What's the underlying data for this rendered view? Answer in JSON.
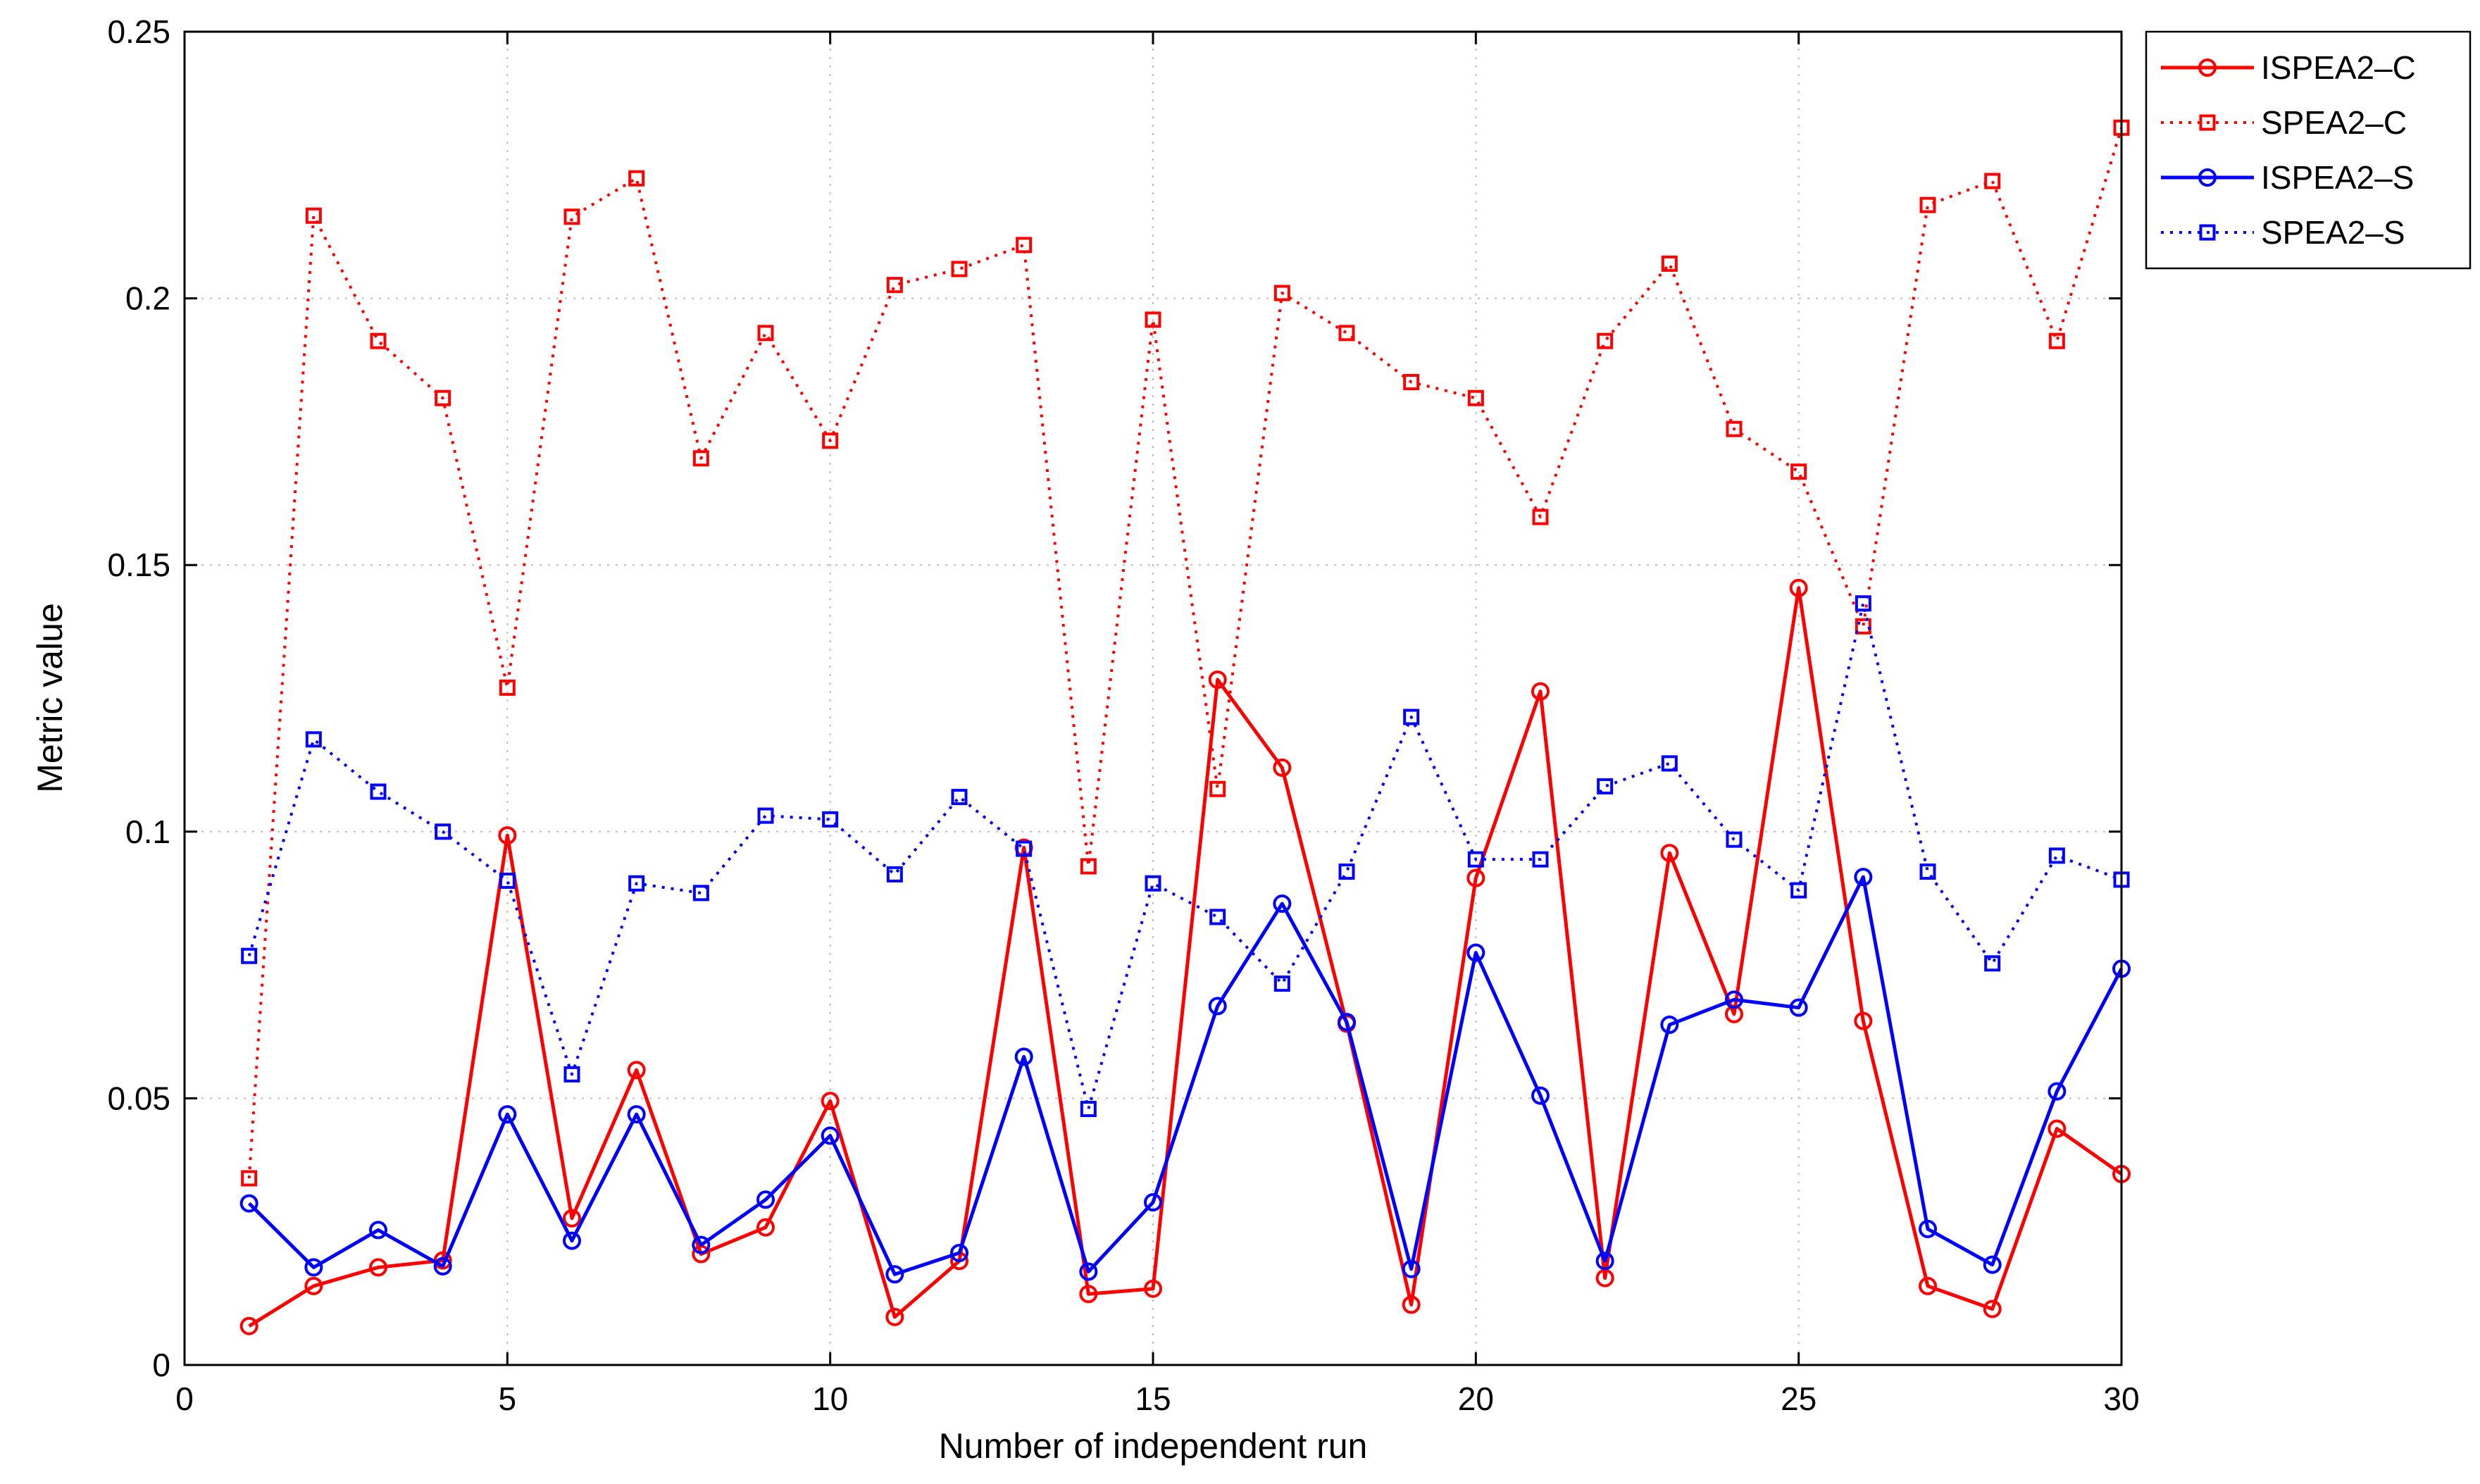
{
  "chart_data": {
    "type": "line",
    "title": "",
    "xlabel": "Number of independent run",
    "ylabel": "Metric value",
    "xlim": [
      0,
      30
    ],
    "ylim": [
      0,
      0.25
    ],
    "xticks": [
      0,
      5,
      10,
      15,
      20,
      25,
      30
    ],
    "yticks": [
      0,
      0.05,
      0.1,
      0.15,
      0.2,
      0.25
    ],
    "xtick_labels": [
      "0",
      "5",
      "10",
      "15",
      "20",
      "25",
      "30"
    ],
    "ytick_labels": [
      "0",
      "0.05",
      "0.1",
      "0.15",
      "0.2",
      "0.25"
    ],
    "grid": true,
    "legend_position": "outside-top-right",
    "x": [
      1,
      2,
      3,
      4,
      5,
      6,
      7,
      8,
      9,
      10,
      11,
      12,
      13,
      14,
      15,
      16,
      17,
      18,
      19,
      20,
      21,
      22,
      23,
      24,
      25,
      26,
      27,
      28,
      29,
      30
    ],
    "series": [
      {
        "name": "ISPEA2–C",
        "color": "#ff0000",
        "line": "solid",
        "marker": "circle",
        "values": [
          0.0073,
          0.0148,
          0.0183,
          0.0196,
          0.0993,
          0.0275,
          0.0553,
          0.0208,
          0.0258,
          0.0495,
          0.009,
          0.0195,
          0.097,
          0.0133,
          0.0143,
          0.1285,
          0.112,
          0.064,
          0.0113,
          0.0913,
          0.1263,
          0.0163,
          0.096,
          0.0658,
          0.1457,
          0.0645,
          0.0148,
          0.0105,
          0.0443,
          0.0358
        ]
      },
      {
        "name": "SPEA2–C",
        "color": "#ff0000",
        "line": "dotted",
        "marker": "square",
        "values": [
          0.035,
          0.2155,
          0.192,
          0.1813,
          0.127,
          0.2153,
          0.2225,
          0.17,
          0.1935,
          0.1733,
          0.2025,
          0.2055,
          0.21,
          0.0935,
          0.196,
          0.108,
          0.201,
          0.1935,
          0.1843,
          0.1813,
          0.159,
          0.192,
          0.2065,
          0.1755,
          0.1675,
          0.1385,
          0.2175,
          0.222,
          0.192,
          0.232
        ]
      },
      {
        "name": "ISPEA2–S",
        "color": "#0000ff",
        "line": "solid",
        "marker": "circle",
        "values": [
          0.0303,
          0.0183,
          0.0253,
          0.0185,
          0.047,
          0.0233,
          0.047,
          0.0225,
          0.031,
          0.043,
          0.017,
          0.021,
          0.0578,
          0.0175,
          0.0305,
          0.0673,
          0.0865,
          0.0643,
          0.018,
          0.0773,
          0.0505,
          0.0195,
          0.0638,
          0.0685,
          0.067,
          0.0915,
          0.0255,
          0.0188,
          0.0513,
          0.0743
        ]
      },
      {
        "name": "SPEA2–S",
        "color": "#0000ff",
        "line": "dotted",
        "marker": "square",
        "values": [
          0.0767,
          0.1173,
          0.1075,
          0.1,
          0.0908,
          0.0545,
          0.0903,
          0.0885,
          0.103,
          0.1023,
          0.092,
          0.1065,
          0.0968,
          0.048,
          0.0903,
          0.084,
          0.0715,
          0.0925,
          0.1215,
          0.0948,
          0.0948,
          0.1085,
          0.1128,
          0.0985,
          0.089,
          0.1428,
          0.0925,
          0.0753,
          0.0955,
          0.091
        ]
      }
    ]
  }
}
